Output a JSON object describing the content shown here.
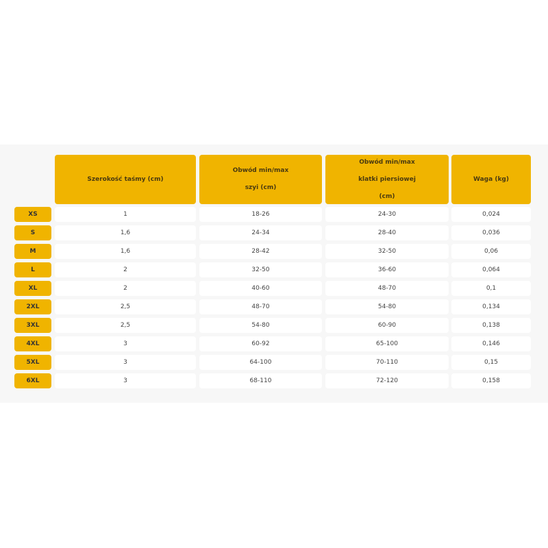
{
  "table": {
    "headers": [
      [
        "Szerokość taśmy (cm)"
      ],
      [
        "Obwód min/max",
        "szyi (cm)"
      ],
      [
        "Obwód min/max",
        "klatki piersiowej",
        "(cm)"
      ],
      [
        "Waga (kg)"
      ]
    ],
    "rows": [
      {
        "size": "XS",
        "values": [
          "1",
          "18-26",
          "24-30",
          "0,024"
        ]
      },
      {
        "size": "S",
        "values": [
          "1,6",
          "24-34",
          "28-40",
          "0,036"
        ]
      },
      {
        "size": "M",
        "values": [
          "1,6",
          "28-42",
          "32-50",
          "0,06"
        ]
      },
      {
        "size": "L",
        "values": [
          "2",
          "32-50",
          "36-60",
          "0,064"
        ]
      },
      {
        "size": "XL",
        "values": [
          "2",
          "40-60",
          "48-70",
          "0,1"
        ]
      },
      {
        "size": "2XL",
        "values": [
          "2,5",
          "48-70",
          "54-80",
          "0,134"
        ]
      },
      {
        "size": "3XL",
        "values": [
          "2,5",
          "54-80",
          "60-90",
          "0,138"
        ]
      },
      {
        "size": "4XL",
        "values": [
          "3",
          "60-92",
          "65-100",
          "0,146"
        ]
      },
      {
        "size": "5XL",
        "values": [
          "3",
          "64-100",
          "70-110",
          "0,15"
        ]
      },
      {
        "size": "6XL",
        "values": [
          "3",
          "68-110",
          "72-120",
          "0,158"
        ]
      }
    ]
  },
  "colors": {
    "accent": "#f0b400",
    "panel": "#f7f7f7"
  }
}
